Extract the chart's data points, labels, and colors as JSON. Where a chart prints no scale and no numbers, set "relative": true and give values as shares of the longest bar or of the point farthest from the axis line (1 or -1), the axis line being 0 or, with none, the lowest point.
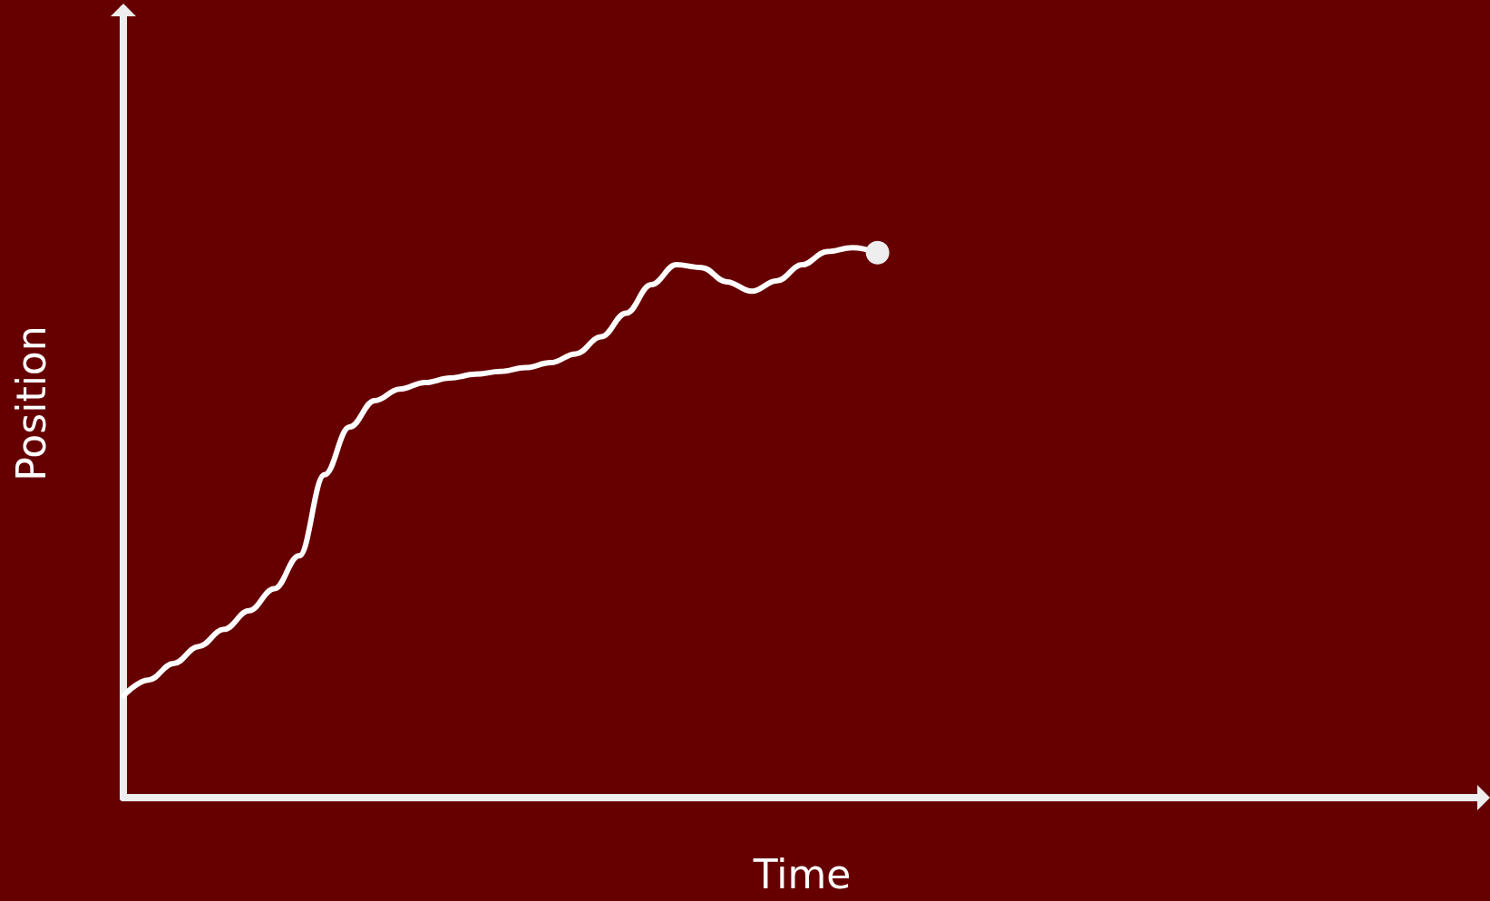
{
  "chart_data": {
    "type": "line",
    "relative": true,
    "xlabel": "Time",
    "ylabel": "Position",
    "grid": false,
    "categories": [
      null,
      null,
      null,
      null,
      null,
      null,
      null,
      null,
      null,
      null,
      null,
      null,
      null,
      null,
      null,
      null,
      null,
      null,
      null,
      null,
      null,
      null,
      null,
      null,
      null,
      null,
      null,
      null,
      null,
      null,
      null,
      null,
      null,
      null,
      null,
      null,
      null,
      null,
      null,
      null,
      null,
      null,
      null,
      null,
      null,
      null,
      null,
      null,
      null,
      null,
      null,
      null,
      null,
      null,
      null
    ],
    "series": [
      {
        "color": "#ffffff",
        "values": [
          0.185,
          0.214,
          0.244,
          0.275,
          0.306,
          0.34,
          0.38,
          0.44,
          0.587,
          0.674,
          0.722,
          0.743,
          0.755,
          0.763,
          0.77,
          0.775,
          0.782,
          0.791,
          0.807,
          0.838,
          0.881,
          0.933,
          0.969,
          0.964,
          0.938,
          0.921,
          0.94,
          0.969,
          0.993,
          1,
          0.991,
          null,
          null,
          null,
          null,
          null,
          null,
          null,
          null,
          null,
          null,
          null,
          null,
          null,
          null,
          null,
          null,
          null,
          null,
          null,
          null,
          null,
          null,
          null,
          null
        ]
      }
    ]
  }
}
